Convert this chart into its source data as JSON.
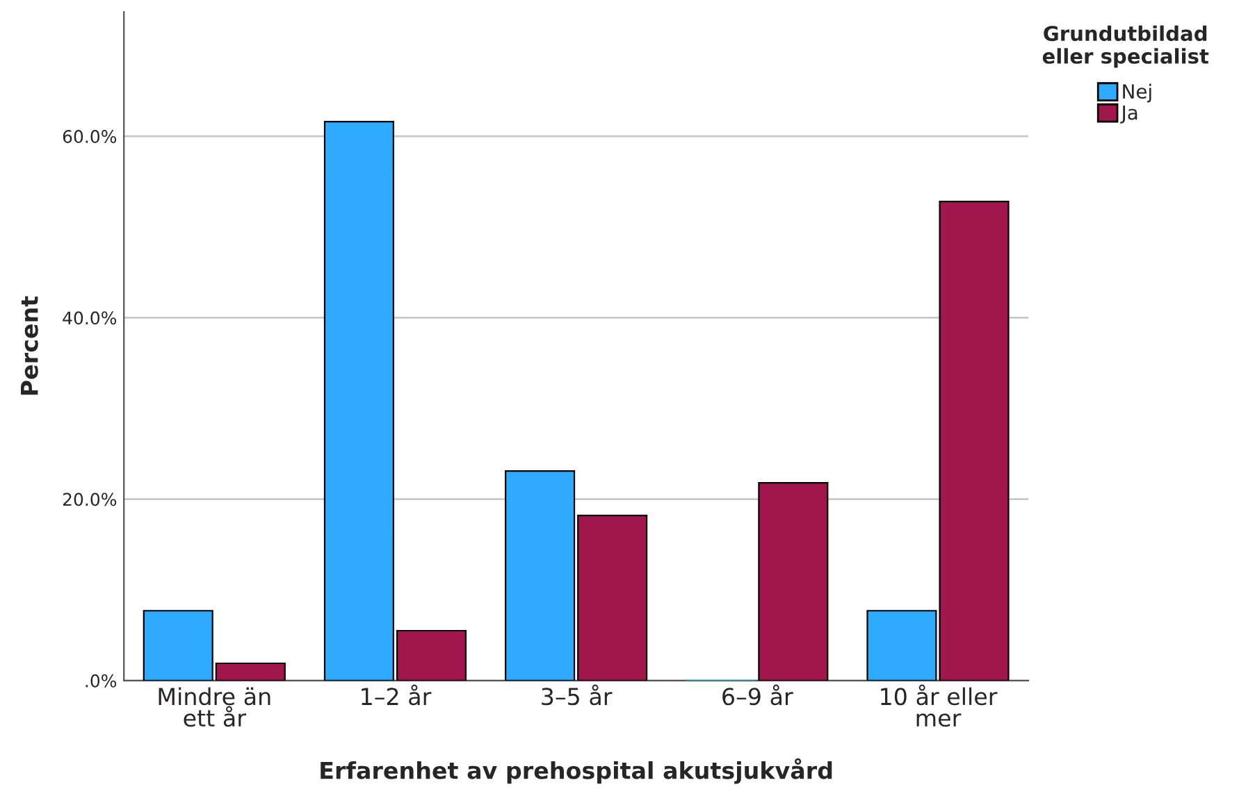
{
  "chart_data": {
    "type": "bar",
    "xlabel": "Erfarenhet av prehospital akutsjukvård",
    "ylabel": "Percent",
    "legend_title": "Grundutbildad\neller specialist",
    "categories": [
      "Mindre än\nett år",
      "1–2 år",
      "3–5 år",
      "6–9 år",
      "10 år eller\nmer"
    ],
    "series": [
      {
        "name": "Nej",
        "color": "#2eabff",
        "values": [
          7.7,
          61.6,
          23.1,
          0,
          7.7
        ]
      },
      {
        "name": "Ja",
        "color": "#a0164d",
        "values": [
          1.9,
          5.5,
          18.2,
          21.8,
          52.8
        ]
      }
    ],
    "ylim": [
      0,
      73.7
    ],
    "yticks": [
      {
        "value": 0,
        "label": ".0%"
      },
      {
        "value": 20,
        "label": "20.0%"
      },
      {
        "value": 40,
        "label": "40.0%"
      },
      {
        "value": 60,
        "label": "60.0%"
      }
    ],
    "grid": "y",
    "legend": "top right"
  }
}
